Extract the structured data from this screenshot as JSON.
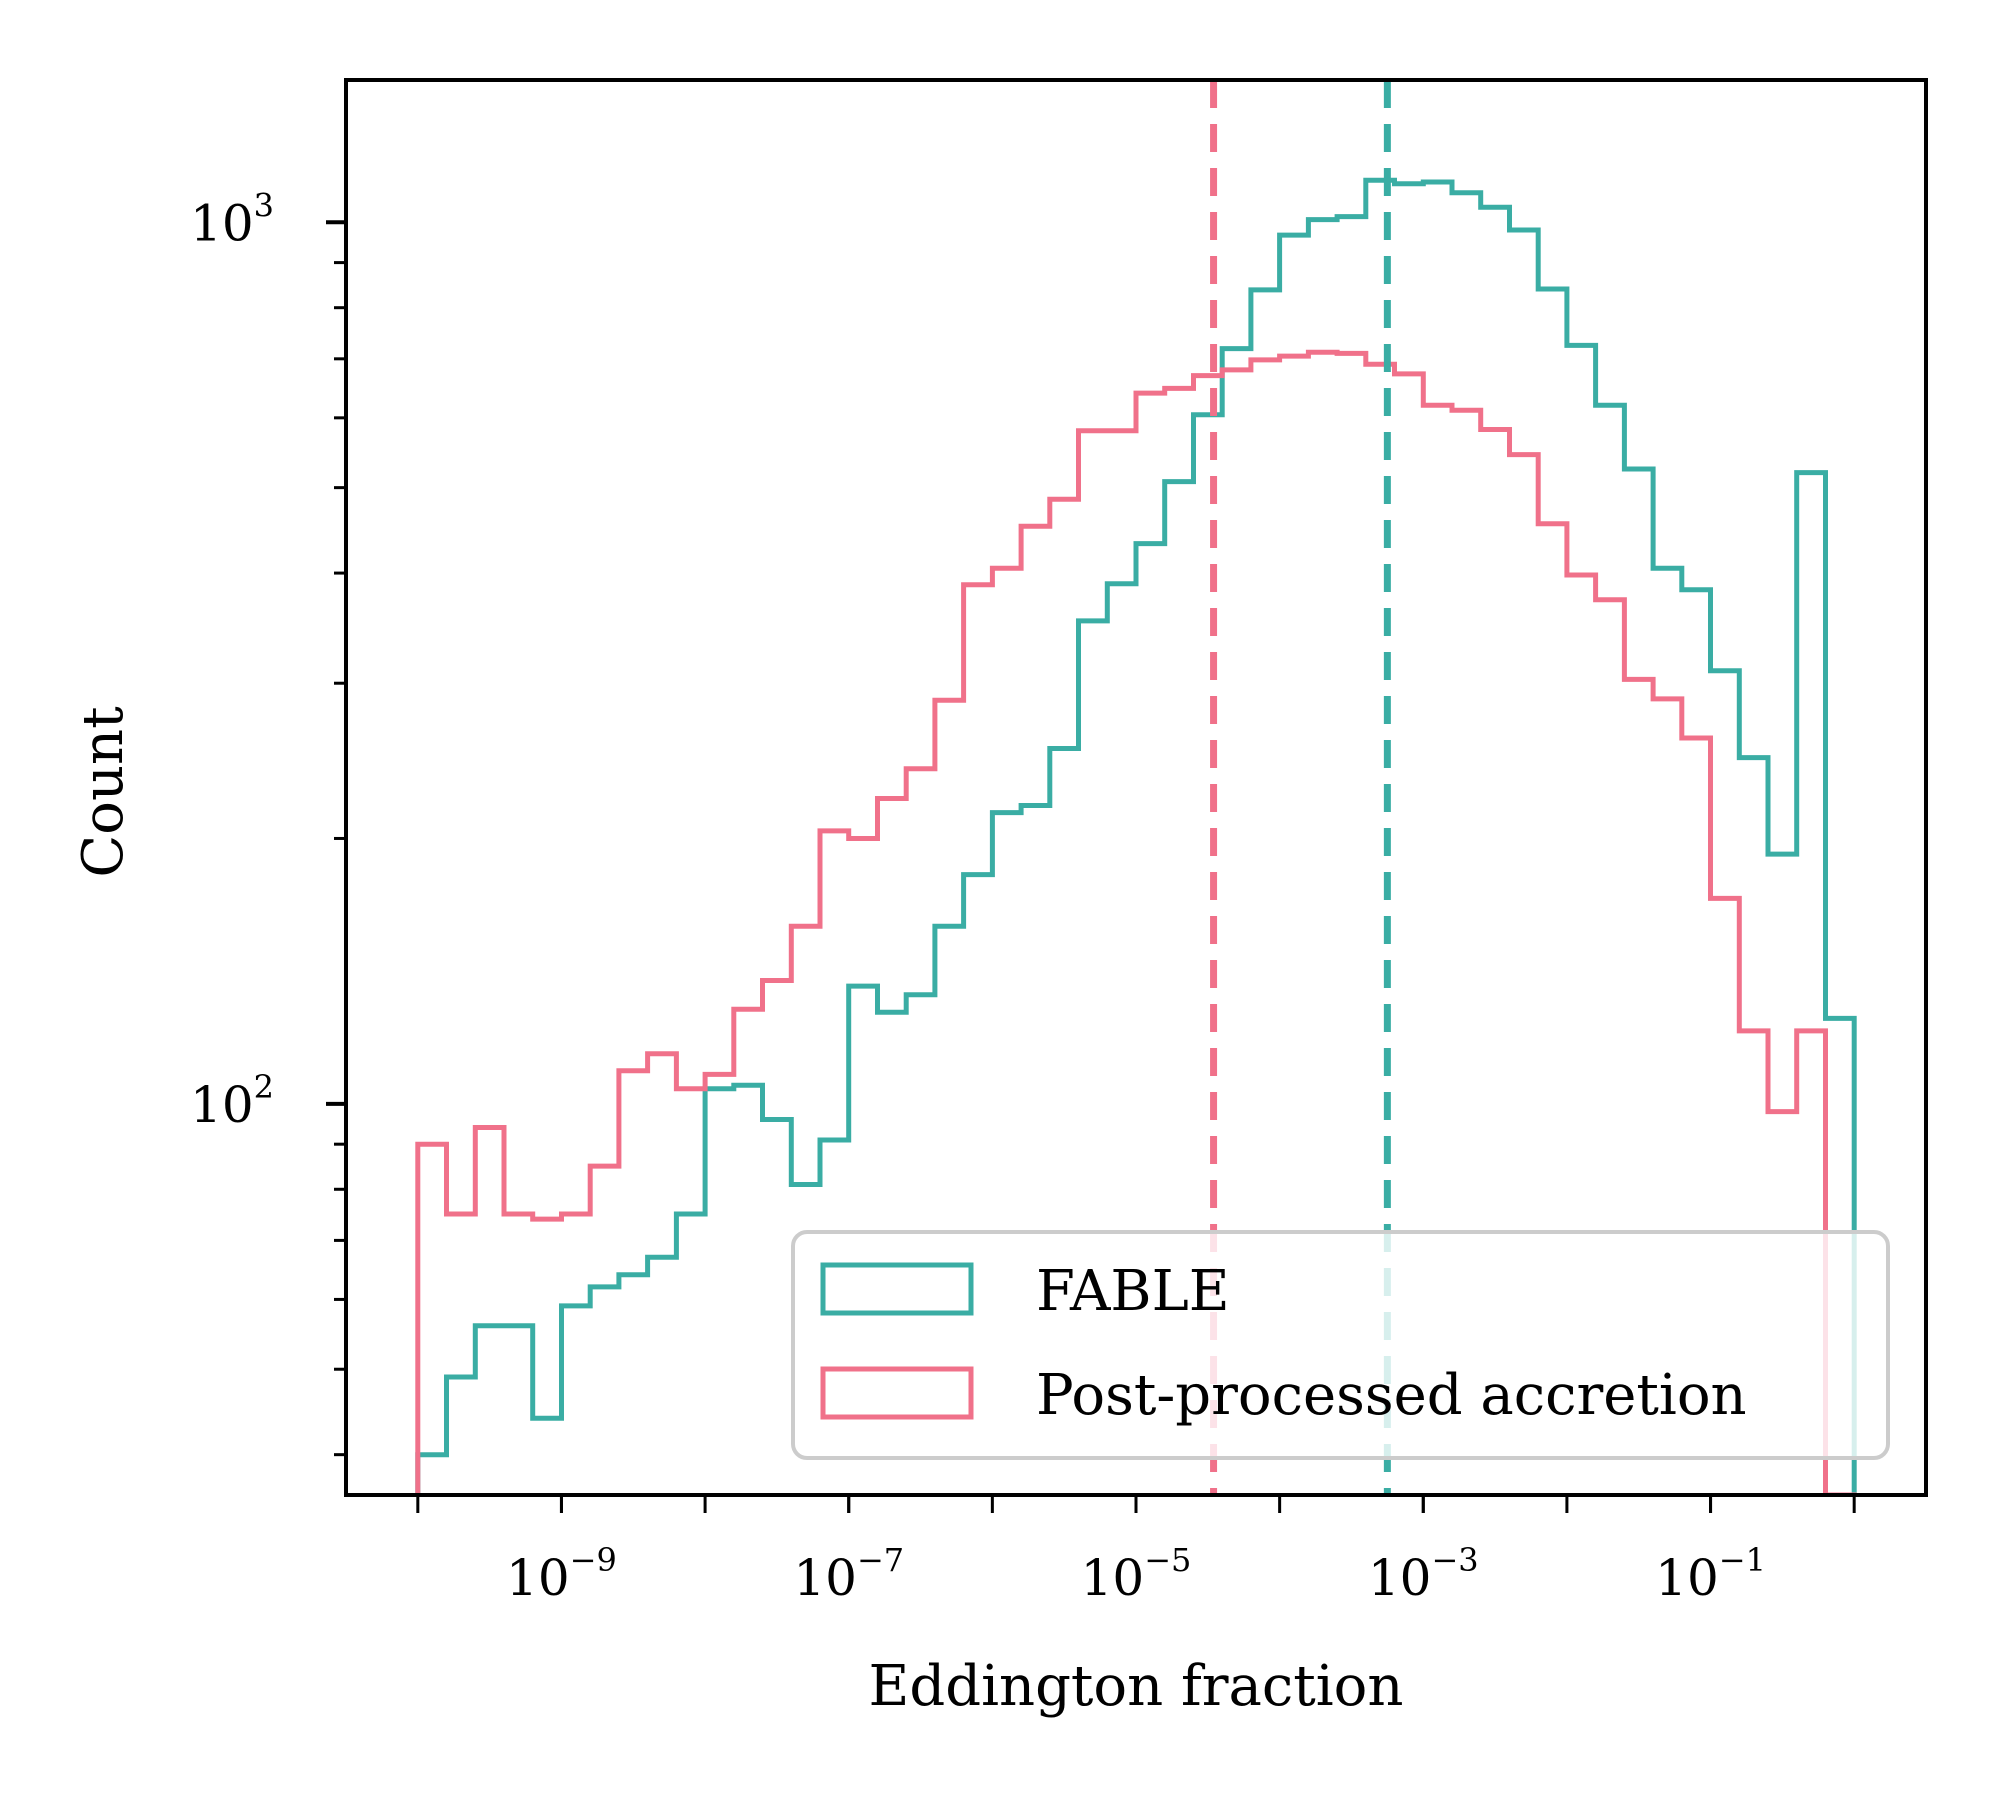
{
  "chart_data": {
    "type": "histogram",
    "title": "",
    "xlabel": "Eddington fraction",
    "ylabel": "Count",
    "xscale": "log",
    "yscale": "log",
    "xlim_log10": [
      -10.5,
      0.5
    ],
    "ylim": [
      36,
      1450
    ],
    "x_ticks": [
      {
        "base": "10",
        "exp": "−9",
        "log10": -9
      },
      {
        "base": "10",
        "exp": "−7",
        "log10": -7
      },
      {
        "base": "10",
        "exp": "−5",
        "log10": -5
      },
      {
        "base": "10",
        "exp": "−3",
        "log10": -3
      },
      {
        "base": "10",
        "exp": "−1",
        "log10": -1
      }
    ],
    "y_ticks": [
      {
        "base": "10",
        "exp": "2",
        "value": 100
      },
      {
        "base": "10",
        "exp": "3",
        "value": 1000
      }
    ],
    "bin_edges_log10_start": -10.0,
    "bin_width_log10": 0.2,
    "legend_position": "lower right",
    "series": [
      {
        "name": "FABLE",
        "color": "#3AADA4",
        "counts": [
          40,
          49,
          56,
          56,
          44,
          59,
          62,
          64,
          67,
          75,
          104,
          105,
          96,
          81,
          91,
          136,
          127,
          133,
          159,
          182,
          214,
          218,
          253,
          353,
          389,
          432,
          508,
          605,
          719,
          838,
          967,
          1007,
          1015,
          1116,
          1106,
          1111,
          1080,
          1040,
          980,
          840,
          725,
          620,
          525,
          405,
          383,
          310,
          247,
          192,
          520,
          125
        ],
        "median_log10": -3.25
      },
      {
        "name": "Post-processed accretion",
        "color": "#F0718A",
        "counts": [
          90,
          75,
          94,
          75,
          74,
          75,
          85,
          109,
          114,
          104,
          108,
          128,
          138,
          159,
          204,
          200,
          222,
          240,
          287,
          388,
          405,
          452,
          485,
          580,
          580,
          640,
          648,
          670,
          680,
          698,
          705,
          712,
          710,
          690,
          673,
          620,
          612,
          582,
          545,
          455,
          398,
          373,
          303,
          288,
          260,
          171,
          121,
          98,
          121,
          36
        ],
        "median_log10": -4.46
      }
    ]
  }
}
